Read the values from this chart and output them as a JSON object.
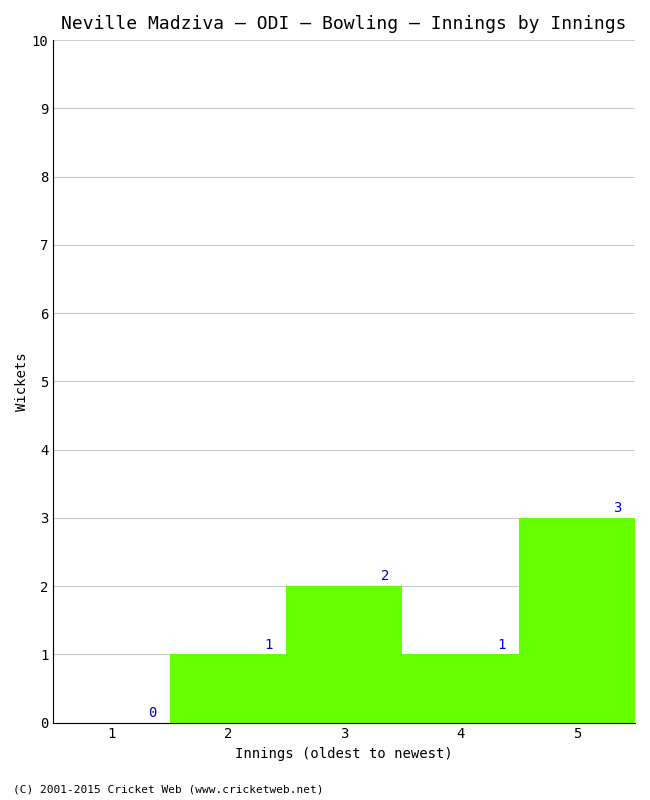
{
  "title": "Neville Madziva – ODI – Bowling – Innings by Innings",
  "xlabel": "Innings (oldest to newest)",
  "ylabel": "Wickets",
  "categories": [
    1,
    2,
    3,
    4,
    5
  ],
  "values": [
    0,
    1,
    2,
    1,
    3
  ],
  "bar_color": "#66ff00",
  "bar_edge_color": "#66ff00",
  "ylim": [
    0,
    10
  ],
  "yticks": [
    0,
    1,
    2,
    3,
    4,
    5,
    6,
    7,
    8,
    9,
    10
  ],
  "xticks": [
    1,
    2,
    3,
    4,
    5
  ],
  "xlim": [
    0.5,
    5.5
  ],
  "background_color": "#ffffff",
  "grid_color": "#cccccc",
  "label_color": "#0000cc",
  "title_fontsize": 13,
  "axis_label_fontsize": 10,
  "tick_fontsize": 10,
  "annotation_fontsize": 10,
  "footer": "(C) 2001-2015 Cricket Web (www.cricketweb.net)"
}
